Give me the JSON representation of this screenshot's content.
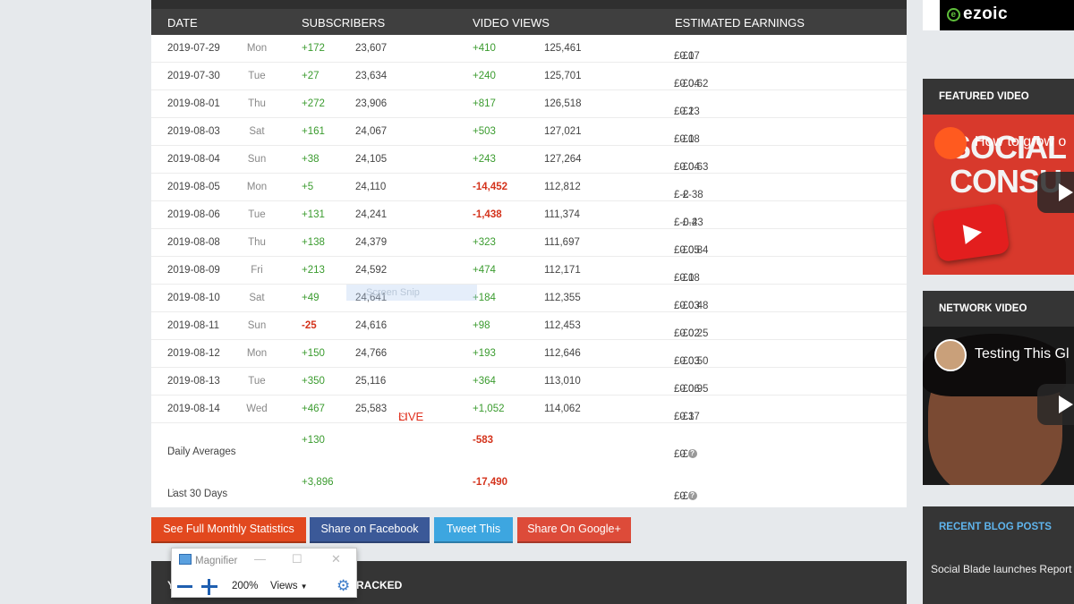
{
  "table": {
    "headers": [
      "DATE",
      "SUBSCRIBERS",
      "VIDEO VIEWS",
      "ESTIMATED EARNINGS"
    ],
    "rows": [
      {
        "date": "2019-07-29",
        "day": "Mon",
        "sub_delta": "+172",
        "sub_total": "23,607",
        "view_delta": "+410",
        "view_total": "125,461",
        "earn_low": "£0.07",
        "earn_high": "£1",
        "sub_neg": false,
        "view_neg": false
      },
      {
        "date": "2019-07-30",
        "day": "Tue",
        "sub_delta": "+27",
        "sub_total": "23,634",
        "view_delta": "+240",
        "view_total": "125,701",
        "earn_low": "£0.04",
        "earn_high": "£0.62",
        "sub_neg": false,
        "view_neg": false
      },
      {
        "date": "2019-08-01",
        "day": "Thu",
        "sub_delta": "+272",
        "sub_total": "23,906",
        "view_delta": "+817",
        "view_total": "126,518",
        "earn_low": "£0.13",
        "earn_high": "£2",
        "sub_neg": false,
        "view_neg": false
      },
      {
        "date": "2019-08-03",
        "day": "Sat",
        "sub_delta": "+161",
        "sub_total": "24,067",
        "view_delta": "+503",
        "view_total": "127,021",
        "earn_low": "£0.08",
        "earn_high": "£1",
        "sub_neg": false,
        "view_neg": false
      },
      {
        "date": "2019-08-04",
        "day": "Sun",
        "sub_delta": "+38",
        "sub_total": "24,105",
        "view_delta": "+243",
        "view_total": "127,264",
        "earn_low": "£0.04",
        "earn_high": "£0.63",
        "sub_neg": false,
        "view_neg": false
      },
      {
        "date": "2019-08-05",
        "day": "Mon",
        "sub_delta": "+5",
        "sub_total": "24,110",
        "view_delta": "-14,452",
        "view_total": "112,812",
        "earn_low": "£-2",
        "earn_high": "£-38",
        "sub_neg": false,
        "view_neg": true
      },
      {
        "date": "2019-08-06",
        "day": "Tue",
        "sub_delta": "+131",
        "sub_total": "24,241",
        "view_delta": "-1,438",
        "view_total": "111,374",
        "earn_low": "£-0.23",
        "earn_high": "£-4",
        "sub_neg": false,
        "view_neg": true
      },
      {
        "date": "2019-08-08",
        "day": "Thu",
        "sub_delta": "+138",
        "sub_total": "24,379",
        "view_delta": "+323",
        "view_total": "111,697",
        "earn_low": "£0.05",
        "earn_high": "£0.84",
        "sub_neg": false,
        "view_neg": false
      },
      {
        "date": "2019-08-09",
        "day": "Fri",
        "sub_delta": "+213",
        "sub_total": "24,592",
        "view_delta": "+474",
        "view_total": "112,171",
        "earn_low": "£0.08",
        "earn_high": "£1",
        "sub_neg": false,
        "view_neg": false
      },
      {
        "date": "2019-08-10",
        "day": "Sat",
        "sub_delta": "+49",
        "sub_total": "24,641",
        "view_delta": "+184",
        "view_total": "112,355",
        "earn_low": "£0.03",
        "earn_high": "£0.48",
        "sub_neg": false,
        "view_neg": false
      },
      {
        "date": "2019-08-11",
        "day": "Sun",
        "sub_delta": "-25",
        "sub_total": "24,616",
        "view_delta": "+98",
        "view_total": "112,453",
        "earn_low": "£0.02",
        "earn_high": "£0.25",
        "sub_neg": true,
        "view_neg": false
      },
      {
        "date": "2019-08-12",
        "day": "Mon",
        "sub_delta": "+150",
        "sub_total": "24,766",
        "view_delta": "+193",
        "view_total": "112,646",
        "earn_low": "£0.03",
        "earn_high": "£0.50",
        "sub_neg": false,
        "view_neg": false
      },
      {
        "date": "2019-08-13",
        "day": "Tue",
        "sub_delta": "+350",
        "sub_total": "25,116",
        "view_delta": "+364",
        "view_total": "113,010",
        "earn_low": "£0.06",
        "earn_high": "£0.95",
        "sub_neg": false,
        "view_neg": false
      },
      {
        "date": "2019-08-14",
        "day": "Wed",
        "sub_delta": "+467",
        "sub_total": "25,583",
        "view_delta": "+1,052",
        "view_total": "114,062",
        "earn_low": "£0.17",
        "earn_high": "£3",
        "sub_neg": false,
        "view_neg": false,
        "live": "LIVE"
      }
    ],
    "earn_sep": "-",
    "summary": [
      {
        "label": "Daily Averages",
        "sub": "+130",
        "view": "-583",
        "earn_low": "£0",
        "earn_high": "£0"
      },
      {
        "label": "Last 30 Days",
        "sub": "+3,896",
        "view": "-17,490",
        "earn_low": "£0",
        "earn_high": "£0"
      }
    ]
  },
  "watermark": "Screen Snip",
  "buttons": {
    "monthly": "See Full Monthly Statistics",
    "facebook": "Share on Facebook",
    "tweet": "Tweet This",
    "google": "Share On Google+"
  },
  "bottom_panel": {
    "left": "Y",
    "right": "RACKED"
  },
  "magnifier": {
    "title": "Magnifier",
    "zoom": "200%",
    "views": "Views"
  },
  "sidebar": {
    "ad_logo": "ezoic",
    "featured_title": "FEATURED VIDEO",
    "featured_caption": "How to grow o",
    "featured_big_1": "SOCIAL",
    "featured_big_2": "CONSU",
    "network_title": "NETWORK VIDEO",
    "network_caption": "Testing This Gl",
    "blog_title": "RECENT BLOG POSTS",
    "blog_item": "Social Blade launches Report"
  },
  "colors": {
    "positive": "#3a9b2e",
    "negative": "#d4331c",
    "header": "#3f3f3f"
  }
}
